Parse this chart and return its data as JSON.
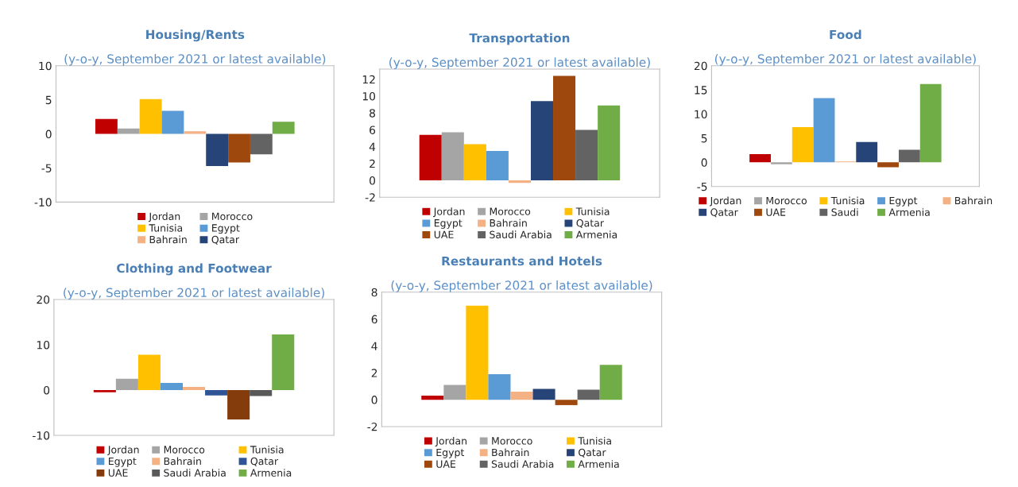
{
  "chart_data": [
    {
      "type": "bar",
      "title": "Housing/Rents",
      "subtitle": "(y-o-y, September 2021 or latest available)",
      "categories": [
        null
      ],
      "ylim": [
        -10,
        10
      ],
      "yticks": [
        -10,
        -5,
        0,
        5,
        10
      ],
      "grid": false,
      "legend": "bottom",
      "series": [
        {
          "name": "Jordan",
          "color": "#c00000",
          "values": [
            2.2
          ]
        },
        {
          "name": "Morocco",
          "color": "#a5a5a5",
          "values": [
            0.8
          ]
        },
        {
          "name": "Tunisia",
          "color": "#ffc000",
          "values": [
            5.1
          ]
        },
        {
          "name": "Egypt",
          "color": "#5b9bd5",
          "values": [
            3.4
          ]
        },
        {
          "name": "Bahrain",
          "color": "#f4b183",
          "values": [
            0.4
          ]
        },
        {
          "name": "Qatar",
          "color": "#264478",
          "values": [
            -4.7
          ]
        },
        {
          "color": "#9e480e",
          "values": [
            -4.2
          ]
        },
        {
          "color": "#636363",
          "values": [
            -3.0
          ]
        },
        {
          "color": "#70ad47",
          "values": [
            1.8
          ]
        }
      ]
    },
    {
      "type": "bar",
      "title": "Transportation",
      "subtitle": "(y-o-y, September 2021 or latest available)",
      "categories": [
        null
      ],
      "ylim": [
        -2,
        13.2
      ],
      "yticks": [
        -2,
        0,
        2,
        4,
        6,
        8,
        10,
        12
      ],
      "grid": false,
      "legend": "bottom",
      "series": [
        {
          "name": "Jordan",
          "color": "#c00000",
          "values": [
            5.4
          ]
        },
        {
          "name": "Morocco",
          "color": "#a5a5a5",
          "values": [
            5.7
          ]
        },
        {
          "name": "Tunisia",
          "color": "#ffc000",
          "values": [
            4.3
          ]
        },
        {
          "name": "Egypt",
          "color": "#5b9bd5",
          "values": [
            3.5
          ]
        },
        {
          "name": "Bahrain",
          "color": "#f4b183",
          "values": [
            -0.3
          ]
        },
        {
          "name": "Qatar",
          "color": "#264478",
          "values": [
            9.4
          ]
        },
        {
          "name": "UAE",
          "color": "#9e480e",
          "values": [
            12.4
          ]
        },
        {
          "name": "Saudi Arabia",
          "color": "#636363",
          "values": [
            6.0
          ]
        },
        {
          "name": "Armenia",
          "color": "#70ad47",
          "values": [
            8.9
          ]
        }
      ]
    },
    {
      "type": "bar",
      "title": "Food",
      "subtitle": "(y-o-y, September 2021 or latest available)",
      "categories": [
        null
      ],
      "ylim": [
        -5,
        20
      ],
      "yticks": [
        -5,
        0,
        5,
        10,
        15,
        20
      ],
      "grid": false,
      "legend": "bottom",
      "series": [
        {
          "name": "Jordan",
          "color": "#c00000",
          "values": [
            1.7
          ]
        },
        {
          "name": "Morocco",
          "color": "#a5a5a5",
          "values": [
            -0.4
          ]
        },
        {
          "name": "Tunisia",
          "color": "#ffc000",
          "values": [
            7.3
          ]
        },
        {
          "name": "Egypt",
          "color": "#5b9bd5",
          "values": [
            13.3
          ]
        },
        {
          "name": "Bahrain",
          "color": "#f4b183",
          "values": [
            0.2
          ]
        },
        {
          "name": "Qatar",
          "color": "#264478",
          "values": [
            4.2
          ]
        },
        {
          "name": "UAE",
          "color": "#9e480e",
          "values": [
            -1.0
          ]
        },
        {
          "name": "Saudi",
          "color": "#636363",
          "values": [
            2.6
          ]
        },
        {
          "name": "Armenia",
          "color": "#70ad47",
          "values": [
            16.2
          ]
        }
      ]
    },
    {
      "type": "bar",
      "title": "Clothing and Footwear",
      "subtitle": "(y-o-y, September 2021 or latest available)",
      "categories": [
        null
      ],
      "ylim": [
        -10,
        20
      ],
      "yticks": [
        -10,
        0,
        10,
        20
      ],
      "grid": false,
      "legend": "bottom",
      "series": [
        {
          "name": "Jordan",
          "color": "#c00000",
          "values": [
            -0.5
          ]
        },
        {
          "name": "Morocco",
          "color": "#a5a5a5",
          "values": [
            2.5
          ]
        },
        {
          "name": "Tunisia",
          "color": "#ffc000",
          "values": [
            7.8
          ]
        },
        {
          "name": "Egypt",
          "color": "#5b9bd5",
          "values": [
            1.6
          ]
        },
        {
          "name": "Bahrain",
          "color": "#f4b183",
          "values": [
            0.7
          ]
        },
        {
          "name": "Qatar",
          "color": "#2f5597",
          "values": [
            -1.2
          ]
        },
        {
          "name": "UAE",
          "color": "#843c0c",
          "values": [
            -6.5
          ]
        },
        {
          "name": "Saudi Arabia",
          "color": "#595959",
          "values": [
            -1.3
          ]
        },
        {
          "name": "Armenia",
          "color": "#70ad47",
          "values": [
            12.3
          ]
        }
      ]
    },
    {
      "type": "bar",
      "title": "Restaurants and Hotels",
      "subtitle": "(y-o-y, September 2021 or latest available)",
      "categories": [
        null
      ],
      "ylim": [
        -2,
        8
      ],
      "yticks": [
        -2,
        0,
        2,
        4,
        6,
        8
      ],
      "grid": false,
      "legend": "bottom",
      "series": [
        {
          "name": "Jordan",
          "color": "#c00000",
          "values": [
            0.3
          ]
        },
        {
          "name": "Morocco",
          "color": "#a5a5a5",
          "values": [
            1.1
          ]
        },
        {
          "name": "Tunisia",
          "color": "#ffc000",
          "values": [
            7.0
          ]
        },
        {
          "name": "Egypt",
          "color": "#5b9bd5",
          "values": [
            1.9
          ]
        },
        {
          "name": "Bahrain",
          "color": "#f4b183",
          "values": [
            0.6
          ]
        },
        {
          "name": "Qatar",
          "color": "#264478",
          "values": [
            0.8
          ]
        },
        {
          "name": "UAE",
          "color": "#9e480e",
          "values": [
            -0.4
          ]
        },
        {
          "name": "Saudi Arabia",
          "color": "#636363",
          "values": [
            0.75
          ]
        },
        {
          "name": "Armenia",
          "color": "#70ad47",
          "values": [
            2.6
          ]
        }
      ]
    }
  ]
}
